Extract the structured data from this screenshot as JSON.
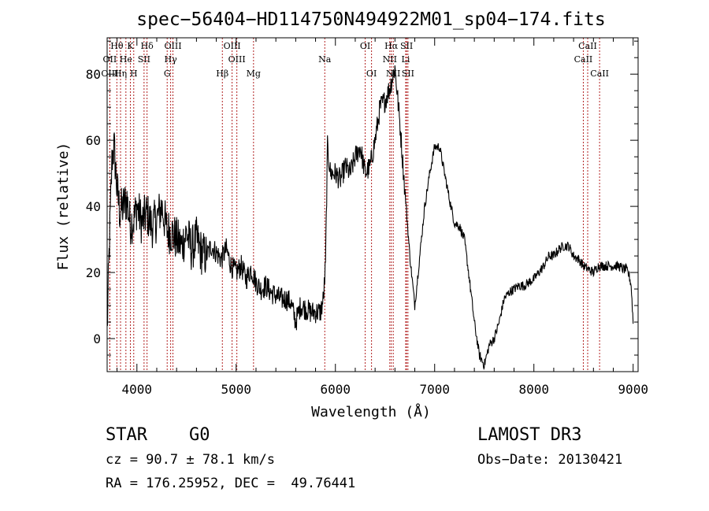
{
  "chart_data": {
    "type": "line",
    "title": "spec−56404−HD114750N494922M01_sp04−174.fits",
    "xlabel": "Wavelength (Å)",
    "ylabel": "Flux (relative)",
    "xlim": [
      3700,
      9050
    ],
    "ylim": [
      -10,
      91
    ],
    "x_ticks": [
      4000,
      5000,
      6000,
      7000,
      8000,
      9000
    ],
    "y_ticks": [
      0,
      20,
      40,
      60,
      80
    ],
    "grid": false,
    "series": [
      {
        "x": [
          3700,
          3720,
          3750,
          3770,
          3800,
          3830,
          3860,
          3900,
          3930,
          3970,
          4000,
          4050,
          4100,
          4150,
          4200,
          4250,
          4300,
          4350,
          4400,
          4450,
          4500,
          4550,
          4600,
          4650,
          4700,
          4750,
          4800,
          4850,
          4900,
          4950,
          5000,
          5050,
          5100,
          5150,
          5200,
          5250,
          5300,
          5350,
          5400,
          5450,
          5500,
          5550,
          5600,
          5650,
          5700,
          5750,
          5800,
          5850,
          5880,
          5900,
          5920,
          5950,
          6000,
          6050,
          6100,
          6150,
          6200,
          6250,
          6300,
          6350,
          6400,
          6450,
          6500,
          6550,
          6600,
          6650,
          6700,
          6750,
          6800,
          6850,
          6900,
          6950,
          7000,
          7050,
          7100,
          7150,
          7200,
          7250,
          7300,
          7350,
          7400,
          7450,
          7500,
          7550,
          7600,
          7650,
          7700,
          7750,
          7800,
          7850,
          7900,
          7950,
          8000,
          8050,
          8100,
          8150,
          8200,
          8250,
          8300,
          8350,
          8400,
          8450,
          8500,
          8550,
          8600,
          8650,
          8700,
          8750,
          8800,
          8850,
          8900,
          8930,
          8960,
          8980,
          9000
        ],
        "y": [
          2,
          25,
          55,
          58,
          45,
          38,
          40,
          42,
          35,
          36,
          40,
          35,
          38,
          34,
          36,
          40,
          33,
          32,
          30,
          28,
          32,
          27,
          30,
          26,
          25,
          28,
          26,
          24,
          27,
          22,
          20,
          22,
          18,
          21,
          17,
          15,
          16,
          14,
          13,
          12,
          12,
          11,
          5,
          10,
          9,
          8,
          8,
          8,
          12,
          22,
          58,
          50,
          50,
          48,
          52,
          50,
          55,
          58,
          50,
          52,
          60,
          70,
          72,
          76,
          82,
          65,
          45,
          25,
          10,
          25,
          40,
          50,
          58,
          58,
          50,
          42,
          35,
          34,
          30,
          18,
          5,
          -5,
          -8,
          -2,
          0,
          5,
          12,
          14,
          15,
          16,
          16,
          17,
          18,
          20,
          22,
          25,
          25,
          27,
          28,
          28,
          25,
          24,
          22,
          21,
          20,
          22,
          22,
          22,
          22,
          22,
          21,
          21,
          19,
          16,
          5
        ]
      }
    ],
    "spectral_lines": [
      {
        "label": "Hθ",
        "x": 3798,
        "row": 1
      },
      {
        "label": "K",
        "x": 3934,
        "row": 1
      },
      {
        "label": "Hδ",
        "x": 4102,
        "row": 1
      },
      {
        "label": "OIII",
        "x": 4363,
        "row": 1
      },
      {
        "label": "OIII",
        "x": 4959,
        "row": 1
      },
      {
        "label": "OI",
        "x": 6300,
        "row": 1
      },
      {
        "label": "Hα",
        "x": 6563,
        "row": 1
      },
      {
        "label": "SII",
        "x": 6717,
        "row": 1
      },
      {
        "label": "CaII",
        "x": 8542,
        "row": 1
      },
      {
        "label": "OII",
        "x": 3727,
        "row": 2
      },
      {
        "label": "He",
        "x": 3889,
        "row": 2
      },
      {
        "label": "SII",
        "x": 4072,
        "row": 2
      },
      {
        "label": "Hγ",
        "x": 4340,
        "row": 2
      },
      {
        "label": "OIII",
        "x": 5007,
        "row": 2
      },
      {
        "label": "Na",
        "x": 5893,
        "row": 2
      },
      {
        "label": "NII",
        "x": 6548,
        "row": 2
      },
      {
        "label": "Li",
        "x": 6708,
        "row": 2
      },
      {
        "label": "CaII",
        "x": 8498,
        "row": 2
      },
      {
        "label": "OIII",
        "x": 3727,
        "row": 3
      },
      {
        "label": "Hη",
        "x": 3835,
        "row": 3
      },
      {
        "label": "H",
        "x": 3968,
        "row": 3
      },
      {
        "label": "G",
        "x": 4305,
        "row": 3
      },
      {
        "label": "Hβ",
        "x": 4861,
        "row": 3
      },
      {
        "label": "Mg",
        "x": 5175,
        "row": 3
      },
      {
        "label": "OI",
        "x": 6364,
        "row": 3
      },
      {
        "label": "NII",
        "x": 6583,
        "row": 3
      },
      {
        "label": "SII",
        "x": 6731,
        "row": 3
      },
      {
        "label": "CaII",
        "x": 8662,
        "row": 3
      }
    ]
  },
  "info": {
    "class_label": "STAR",
    "subclass_label": "G0",
    "survey_label": "LAMOST DR3",
    "cz_text": "cz = 90.7 ± 78.1 km/s",
    "obs_date_text": "Obs−Date: 20130421",
    "coords_text": "RA = 176.25952, DEC =  49.76441"
  }
}
